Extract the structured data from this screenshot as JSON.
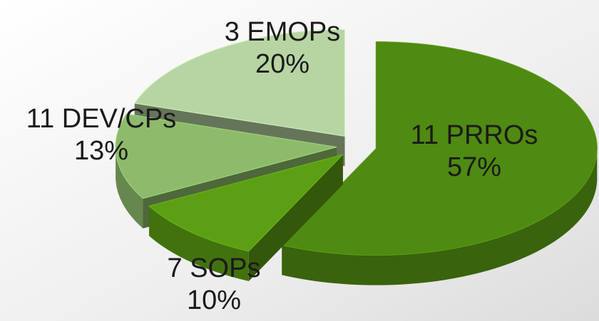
{
  "chart_data": {
    "type": "pie",
    "categories": [
      "11 PRROs",
      "7 SOPs",
      "11 DEV/CPs",
      "3 EMOPs"
    ],
    "values": [
      57,
      10,
      13,
      20
    ],
    "value_labels": [
      "57%",
      "10%",
      "13%",
      "20%"
    ],
    "colors": [
      "#4f8a12",
      "#5c9f14",
      "#8dbb6b",
      "#b7d5a3"
    ]
  }
}
